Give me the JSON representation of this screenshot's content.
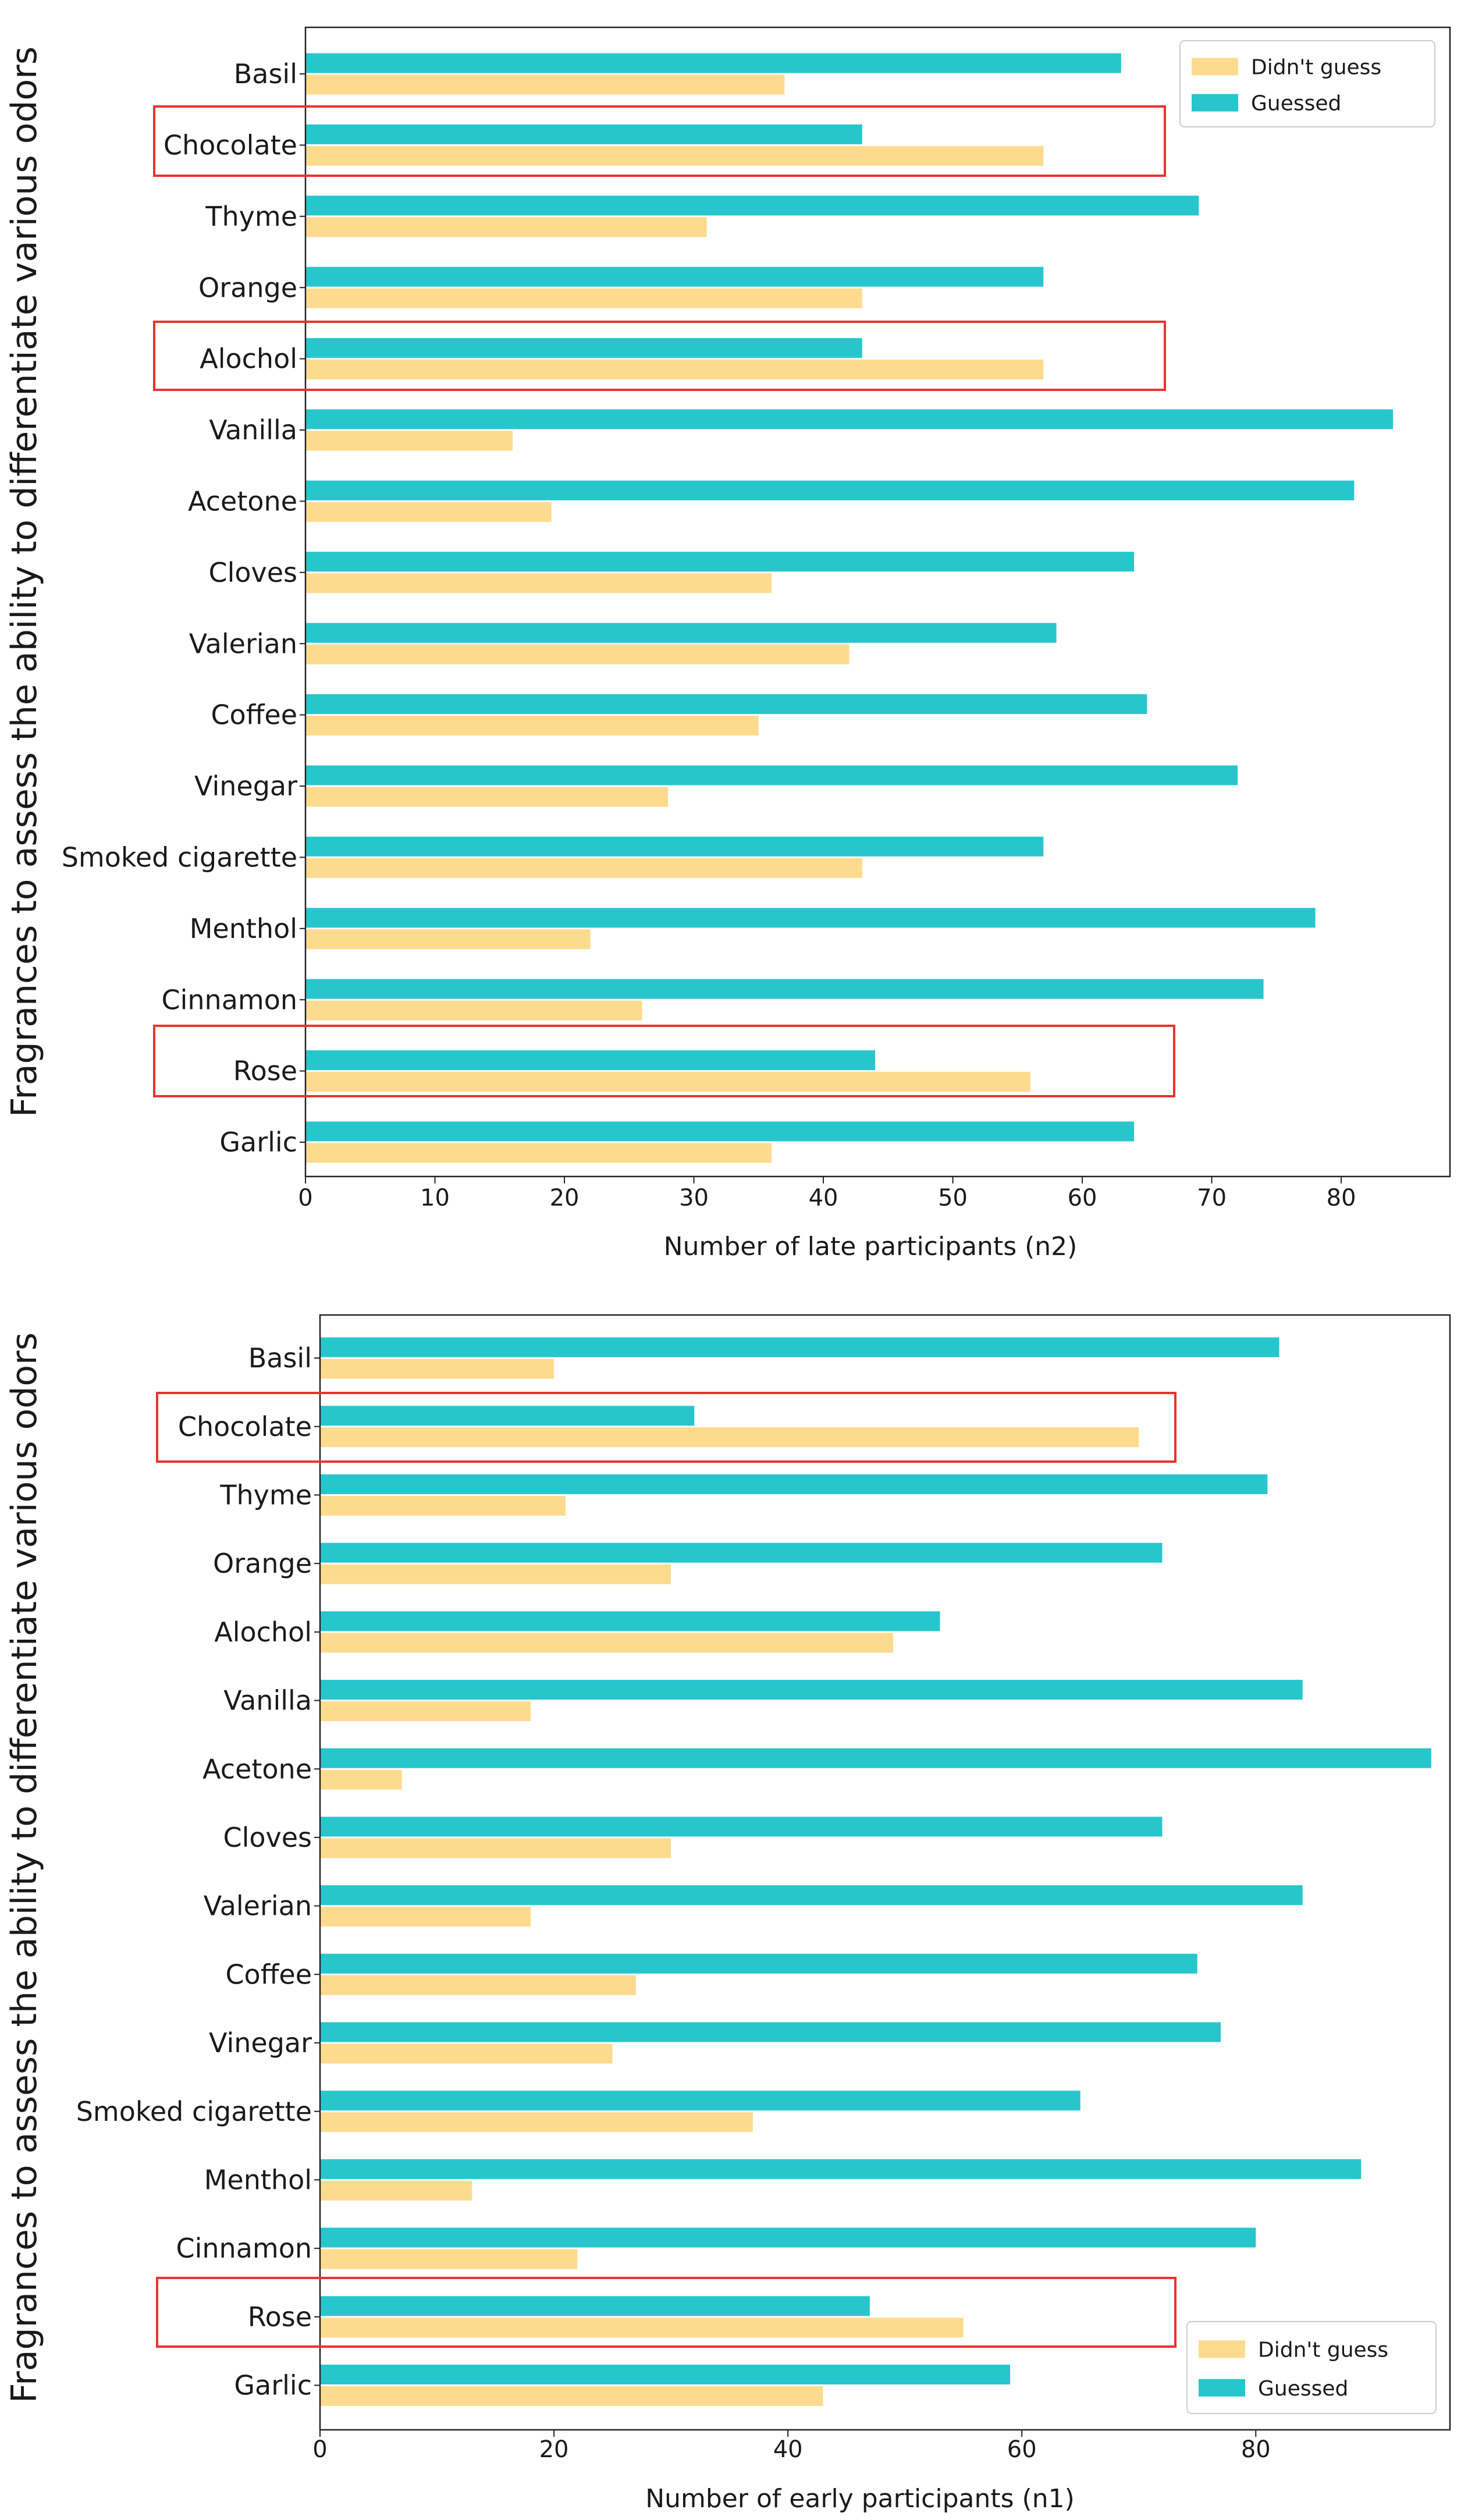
{
  "colors": {
    "guessed": "#27C6CC",
    "didnt_guess": "#FDDB8E",
    "highlight": "#E8342E",
    "axis": "#222222"
  },
  "chart_data": [
    {
      "type": "bar",
      "orientation": "horizontal",
      "ylabel": "Fragrances to assess the ability to differentiate various odors",
      "xlabel": "Number of late participants (n2)",
      "categories": [
        "Basil",
        "Chocolate",
        "Thyme",
        "Orange",
        "Alochol",
        "Vanilla",
        "Acetone",
        "Cloves",
        "Valerian",
        "Coffee",
        "Vinegar",
        "Smoked cigarette",
        "Menthol",
        "Cinnamon",
        "Rose",
        "Garlic"
      ],
      "series": [
        {
          "name": "Guessed",
          "values": [
            63,
            43,
            69,
            57,
            43,
            84,
            81,
            64,
            58,
            65,
            72,
            57,
            78,
            74,
            44,
            64
          ]
        },
        {
          "name": "Didn't guess",
          "values": [
            37,
            57,
            31,
            43,
            57,
            16,
            19,
            36,
            42,
            35,
            28,
            43,
            22,
            26,
            56,
            36
          ]
        }
      ],
      "xlim": [
        0,
        88.4
      ],
      "xticks": [
        0,
        10,
        20,
        30,
        40,
        50,
        60,
        70,
        80
      ],
      "xtick_labels": [
        "0",
        "10",
        "20",
        "30",
        "40",
        "50",
        "60",
        "70",
        "80"
      ],
      "legend": {
        "position": "top-right",
        "entries": [
          "Didn't guess",
          "Guessed"
        ]
      },
      "highlighted": [
        "Chocolate",
        "Alochol",
        "Rose"
      ]
    },
    {
      "type": "bar",
      "orientation": "horizontal",
      "ylabel": "Fragrances to assess the ability to differentiate various odors",
      "xlabel": "Number of early participants (n1)",
      "categories": [
        "Basil",
        "Chocolate",
        "Thyme",
        "Orange",
        "Alochol",
        "Vanilla",
        "Acetone",
        "Cloves",
        "Valerian",
        "Coffee",
        "Vinegar",
        "Smoked cigarette",
        "Menthol",
        "Cinnamon",
        "Rose",
        "Garlic"
      ],
      "series": [
        {
          "name": "Guessed",
          "values": [
            82,
            32,
            81,
            72,
            53,
            84,
            95,
            72,
            84,
            75,
            77,
            65,
            89,
            80,
            47,
            59
          ]
        },
        {
          "name": "Didn't guess",
          "values": [
            20,
            70,
            21,
            30,
            49,
            18,
            7,
            30,
            18,
            27,
            25,
            37,
            13,
            22,
            55,
            43
          ]
        }
      ],
      "xlim": [
        0,
        96.6
      ],
      "xticks": [
        0,
        20,
        40,
        60,
        80
      ],
      "xtick_labels": [
        "0",
        "20",
        "40",
        "60",
        "80"
      ],
      "legend": {
        "position": "bottom-right",
        "entries": [
          "Didn't guess",
          "Guessed"
        ]
      },
      "highlighted": [
        "Chocolate",
        "Rose"
      ]
    }
  ]
}
